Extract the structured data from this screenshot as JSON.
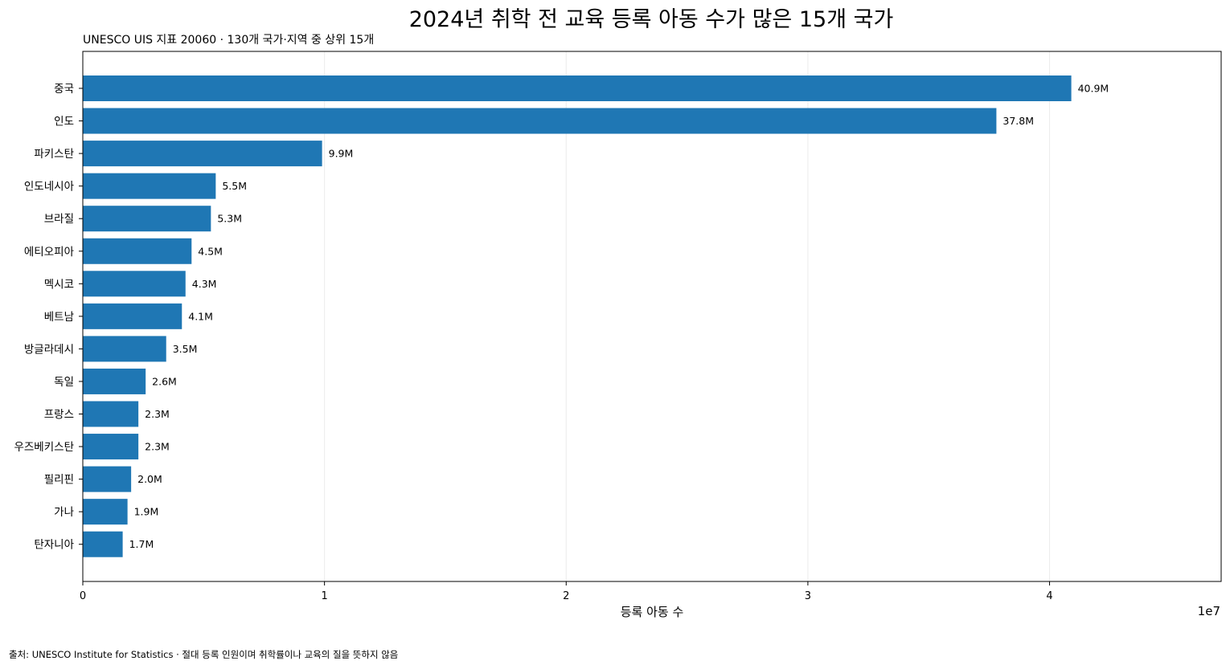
{
  "chart_data": {
    "type": "bar",
    "orientation": "horizontal",
    "title": "2024년 취학 전 교육 등록 아동 수가 많은 15개 국가",
    "subtitle": "UNESCO UIS 지표 20060 · 130개 국가·지역 중 상위 15개",
    "xlabel": "등록 아동 수",
    "ylabel": "",
    "x_scale_label": "1e7",
    "xlim": [
      0,
      47100000
    ],
    "xticks": [
      0,
      10000000,
      20000000,
      30000000,
      40000000
    ],
    "xtick_labels": [
      "0",
      "1",
      "2",
      "3",
      "4"
    ],
    "grid": "vertical",
    "categories": [
      "중국",
      "인도",
      "파키스탄",
      "인도네시아",
      "브라질",
      "에티오피아",
      "멕시코",
      "베트남",
      "방글라데시",
      "독일",
      "프랑스",
      "우즈베키스탄",
      "필리핀",
      "가나",
      "탄자니아"
    ],
    "values": [
      40900000,
      37800000,
      9900000,
      5500000,
      5300000,
      4500000,
      4250000,
      4100000,
      3450000,
      2600000,
      2300000,
      2300000,
      2000000,
      1850000,
      1650000
    ],
    "value_labels": [
      "40.9M",
      "37.8M",
      "9.9M",
      "5.5M",
      "5.3M",
      "4.5M",
      "4.3M",
      "4.1M",
      "3.5M",
      "2.6M",
      "2.3M",
      "2.3M",
      "2.0M",
      "1.9M",
      "1.7M"
    ],
    "bar_color": "#1f77b4",
    "source": "출처: UNESCO Institute for Statistics · 절대 등록 인원이며 취학률이나 교육의 질을 뜻하지 않음"
  }
}
